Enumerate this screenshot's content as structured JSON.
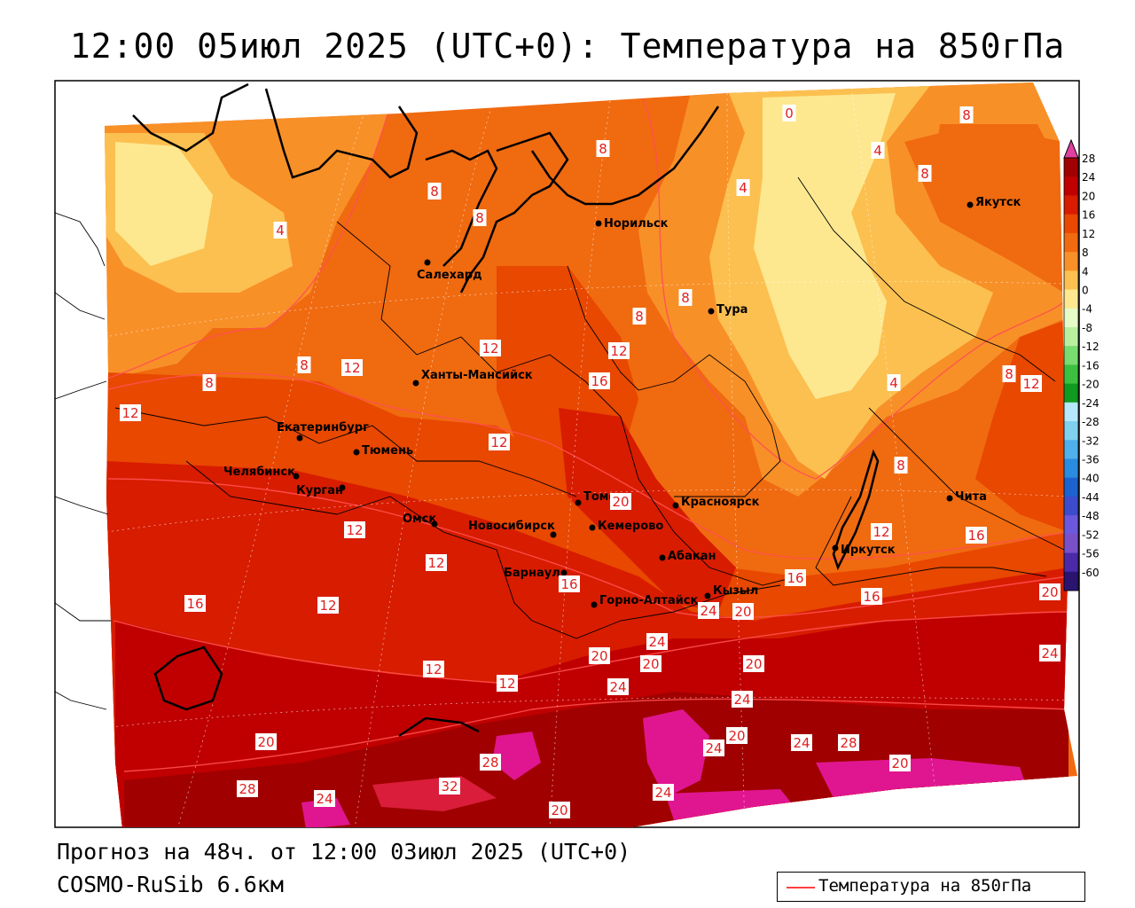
{
  "title": "12:00 05июл 2025 (UTC+0): Температура на 850гПа",
  "forecast_line": "Прогноз на 48ч. от 12:00 03июл 2025 (UTC+0)",
  "model_line": "COSMO-RuSib 6.6км",
  "legend_label": "Температура на 850гПа",
  "legend_line_color": "#ff4040",
  "colorbar": {
    "labels": [
      "28",
      "24",
      "20",
      "16",
      "12",
      "8",
      "4",
      "0",
      "-4",
      "-8",
      "-12",
      "-16",
      "-20",
      "-24",
      "-28",
      "-32",
      "-36",
      "-40",
      "-44",
      "-48",
      "-52",
      "-56",
      "-60"
    ],
    "colors": [
      "#a00000",
      "#c00000",
      "#d81c00",
      "#e84800",
      "#f06a10",
      "#f89028",
      "#fcc050",
      "#fde890",
      "#e6fcc8",
      "#b8f0a0",
      "#78dc70",
      "#3cc040",
      "#109a20",
      "#b4e8fa",
      "#80d0f0",
      "#50b0ec",
      "#2a8ce0",
      "#1c62d0",
      "#3c4ccc",
      "#6c58dc",
      "#7a50c8",
      "#4a2aa8",
      "#2a1470"
    ],
    "top_color": "#e040a0"
  },
  "cities": [
    {
      "name": "Норильск"
    },
    {
      "name": "Якутск"
    },
    {
      "name": "Салехард"
    },
    {
      "name": "Тура"
    },
    {
      "name": "Ханты-Мансийск"
    },
    {
      "name": "Екатеринбург"
    },
    {
      "name": "Тюмень"
    },
    {
      "name": "Челябинск"
    },
    {
      "name": "Курган"
    },
    {
      "name": "Омск"
    },
    {
      "name": "Новосибирск"
    },
    {
      "name": "Томск"
    },
    {
      "name": "Кемерово"
    },
    {
      "name": "Красноярск"
    },
    {
      "name": "Абакан"
    },
    {
      "name": "Барнаул"
    },
    {
      "name": "Горно-Алтайск"
    },
    {
      "name": "Кызыл"
    },
    {
      "name": "Иркутск"
    },
    {
      "name": "Чита"
    }
  ],
  "contour_labels": [
    "0",
    "8",
    "4",
    "8",
    "8",
    "8",
    "4",
    "8",
    "4",
    "8",
    "8",
    "8",
    "8",
    "12",
    "12",
    "16",
    "12",
    "8",
    "12",
    "12",
    "4",
    "8",
    "12",
    "12",
    "12",
    "16",
    "12",
    "20",
    "12",
    "16",
    "20",
    "16",
    "16",
    "12",
    "12",
    "16",
    "20",
    "20",
    "24",
    "24",
    "20",
    "20",
    "24",
    "24",
    "24",
    "20",
    "20",
    "24",
    "28",
    "24",
    "28",
    "20",
    "28",
    "32",
    "24",
    "20",
    "24"
  ]
}
